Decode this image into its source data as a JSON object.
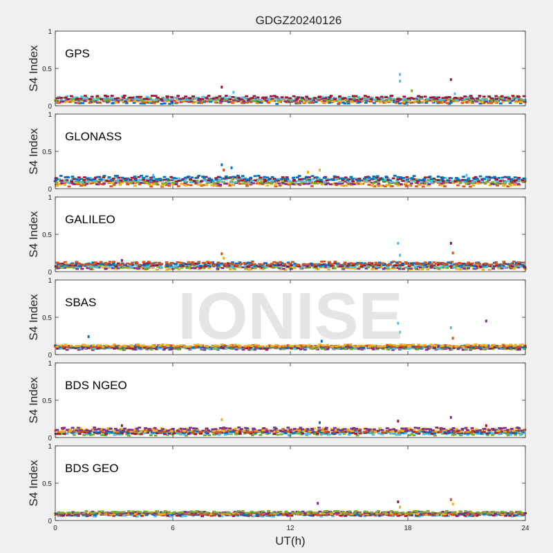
{
  "figure": {
    "title": "GDGZ20240126",
    "xlabel": "UT(h)",
    "watermark": "IONISE"
  },
  "colors": {
    "background": "#f0f0f0",
    "axes_bg": "#ffffff",
    "axis": "#262626",
    "series_palette": [
      "#0072BD",
      "#D95319",
      "#EDB120",
      "#7E2F8E",
      "#77AC30",
      "#4DBEEE",
      "#A2142F"
    ]
  },
  "chart_data": [
    {
      "type": "scatter",
      "panel_label": "GPS",
      "ylabel": "S4 Index",
      "xlim": [
        0,
        24
      ],
      "ylim": [
        0,
        1
      ],
      "xticks": [
        0,
        6,
        12,
        18,
        24
      ],
      "yticks": [
        0,
        0.5,
        1
      ],
      "yticklabels": [
        "0",
        "0.5",
        "1"
      ],
      "xticklabels": [
        "0",
        "6",
        "12",
        "18",
        "24"
      ],
      "show_xticklabels": false,
      "grid": false,
      "baseline_s4": 0.08,
      "noise_s4": 0.03,
      "spikes": [
        {
          "x": 8.5,
          "y": 0.25,
          "color": "#A2142F"
        },
        {
          "x": 9.1,
          "y": 0.18,
          "color": "#4DBEEE"
        },
        {
          "x": 17.6,
          "y": 0.42,
          "color": "#4DBEEE"
        },
        {
          "x": 17.6,
          "y": 0.33,
          "color": "#4DBEEE"
        },
        {
          "x": 18.2,
          "y": 0.2,
          "color": "#77AC30"
        },
        {
          "x": 20.2,
          "y": 0.35,
          "color": "#A2142F"
        },
        {
          "x": 20.4,
          "y": 0.16,
          "color": "#4DBEEE"
        }
      ]
    },
    {
      "type": "scatter",
      "panel_label": "GLONASS",
      "ylabel": "S4 Index",
      "xlim": [
        0,
        24
      ],
      "ylim": [
        0,
        1
      ],
      "xticks": [
        0,
        6,
        12,
        18,
        24
      ],
      "yticks": [
        0,
        0.5,
        1
      ],
      "yticklabels": [
        "0",
        "0.5",
        "1"
      ],
      "xticklabels": [
        "0",
        "6",
        "12",
        "18",
        "24"
      ],
      "show_xticklabels": false,
      "grid": false,
      "baseline_s4": 0.1,
      "noise_s4": 0.04,
      "spikes": [
        {
          "x": 8.5,
          "y": 0.32,
          "color": "#0072BD"
        },
        {
          "x": 8.6,
          "y": 0.25,
          "color": "#D95319"
        },
        {
          "x": 9.0,
          "y": 0.28,
          "color": "#0072BD"
        },
        {
          "x": 12.9,
          "y": 0.22,
          "color": "#EDB120"
        },
        {
          "x": 13.5,
          "y": 0.25,
          "color": "#EDB120"
        },
        {
          "x": 5.0,
          "y": 0.18,
          "color": "#4DBEEE"
        },
        {
          "x": 21.0,
          "y": 0.18,
          "color": "#4DBEEE"
        }
      ]
    },
    {
      "type": "scatter",
      "panel_label": "GALILEO",
      "ylabel": "S4 Index",
      "xlim": [
        0,
        24
      ],
      "ylim": [
        0,
        1
      ],
      "xticks": [
        0,
        6,
        12,
        18,
        24
      ],
      "yticks": [
        0,
        0.5,
        1
      ],
      "yticklabels": [
        "0",
        "0.5",
        "1"
      ],
      "xticklabels": [
        "0",
        "6",
        "12",
        "18",
        "24"
      ],
      "show_xticklabels": false,
      "grid": false,
      "baseline_s4": 0.08,
      "noise_s4": 0.03,
      "spikes": [
        {
          "x": 3.4,
          "y": 0.15,
          "color": "#A2142F"
        },
        {
          "x": 8.5,
          "y": 0.24,
          "color": "#D95319"
        },
        {
          "x": 8.6,
          "y": 0.18,
          "color": "#EDB120"
        },
        {
          "x": 17.5,
          "y": 0.38,
          "color": "#4DBEEE"
        },
        {
          "x": 17.6,
          "y": 0.22,
          "color": "#4DBEEE"
        },
        {
          "x": 20.2,
          "y": 0.38,
          "color": "#A2142F"
        },
        {
          "x": 20.3,
          "y": 0.25,
          "color": "#D95319"
        }
      ]
    },
    {
      "type": "scatter",
      "panel_label": "SBAS",
      "ylabel": "S4 Index",
      "xlim": [
        0,
        24
      ],
      "ylim": [
        0,
        1
      ],
      "xticks": [
        0,
        6,
        12,
        18,
        24
      ],
      "yticks": [
        0,
        0.5,
        1
      ],
      "yticklabels": [
        "0",
        "0.5",
        "1"
      ],
      "xticklabels": [
        "0",
        "6",
        "12",
        "18",
        "24"
      ],
      "show_xticklabels": false,
      "grid": false,
      "baseline_s4": 0.1,
      "noise_s4": 0.02,
      "spikes": [
        {
          "x": 1.7,
          "y": 0.24,
          "color": "#0072BD"
        },
        {
          "x": 17.5,
          "y": 0.42,
          "color": "#4DBEEE"
        },
        {
          "x": 17.6,
          "y": 0.3,
          "color": "#4DBEEE"
        },
        {
          "x": 20.2,
          "y": 0.36,
          "color": "#4DBEEE"
        },
        {
          "x": 20.3,
          "y": 0.22,
          "color": "#D95319"
        },
        {
          "x": 22.0,
          "y": 0.45,
          "color": "#7E2F8E"
        },
        {
          "x": 13.6,
          "y": 0.18,
          "color": "#0072BD"
        }
      ]
    },
    {
      "type": "scatter",
      "panel_label": "BDS NGEO",
      "ylabel": "S4 Index",
      "xlim": [
        0,
        24
      ],
      "ylim": [
        0,
        1
      ],
      "xticks": [
        0,
        6,
        12,
        18,
        24
      ],
      "yticks": [
        0,
        0.5,
        1
      ],
      "yticklabels": [
        "0",
        "0.5",
        "1"
      ],
      "xticklabels": [
        "0",
        "6",
        "12",
        "18",
        "24"
      ],
      "show_xticklabels": false,
      "grid": false,
      "baseline_s4": 0.08,
      "noise_s4": 0.03,
      "spikes": [
        {
          "x": 3.4,
          "y": 0.16,
          "color": "#A2142F"
        },
        {
          "x": 8.5,
          "y": 0.24,
          "color": "#EDB120"
        },
        {
          "x": 13.5,
          "y": 0.2,
          "color": "#0072BD"
        },
        {
          "x": 17.5,
          "y": 0.22,
          "color": "#A2142F"
        },
        {
          "x": 20.2,
          "y": 0.27,
          "color": "#7E2F8E"
        },
        {
          "x": 22.0,
          "y": 0.16,
          "color": "#A2142F"
        }
      ]
    },
    {
      "type": "scatter",
      "panel_label": "BDS GEO",
      "ylabel": "S4 Index",
      "xlim": [
        0,
        24
      ],
      "ylim": [
        0,
        1
      ],
      "xticks": [
        0,
        6,
        12,
        18,
        24
      ],
      "yticks": [
        0,
        0.5,
        1
      ],
      "yticklabels": [
        "0",
        "0.5",
        "1"
      ],
      "xticklabels": [
        "0",
        "6",
        "12",
        "18",
        "24"
      ],
      "show_xticklabels": true,
      "grid": false,
      "baseline_s4": 0.09,
      "noise_s4": 0.02,
      "spikes": [
        {
          "x": 13.4,
          "y": 0.23,
          "color": "#7E2F8E"
        },
        {
          "x": 17.5,
          "y": 0.25,
          "color": "#A2142F"
        },
        {
          "x": 17.6,
          "y": 0.18,
          "color": "#EDB120"
        },
        {
          "x": 20.2,
          "y": 0.28,
          "color": "#D95319"
        },
        {
          "x": 20.3,
          "y": 0.22,
          "color": "#EDB120"
        }
      ]
    }
  ]
}
